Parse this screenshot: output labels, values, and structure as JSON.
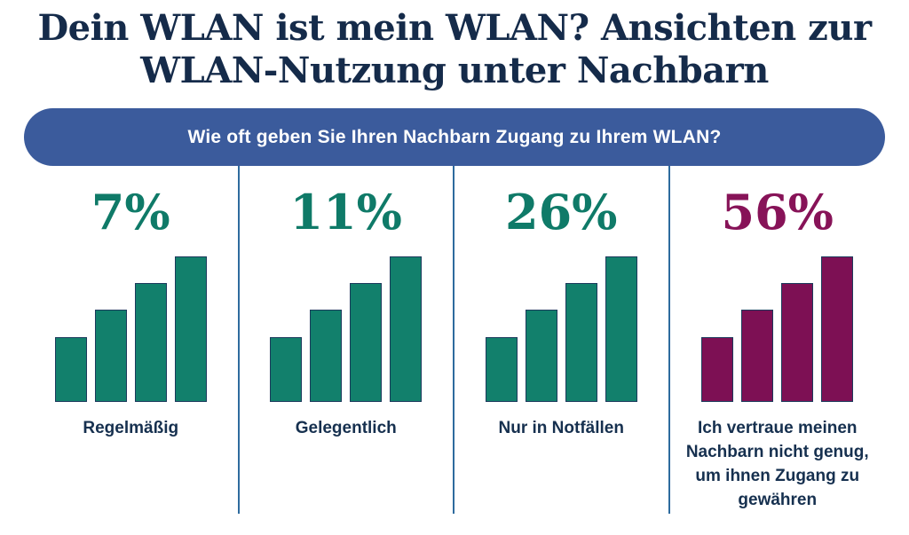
{
  "title": {
    "line1": "Dein WLAN ist mein WLAN? Ansichten zur",
    "line2": "WLAN-Nutzung unter Nachbarn"
  },
  "question_banner": {
    "text": "Wie oft geben Sie Ihren Nachbarn Zugang zu Ihrem WLAN?"
  },
  "columns": [
    {
      "percent": "7%",
      "label": "Regelmäßig",
      "color": "teal",
      "icon": "ascending-bar-chart-icon"
    },
    {
      "percent": "11%",
      "label": "Gelegentlich",
      "color": "teal",
      "icon": "ascending-bar-chart-icon"
    },
    {
      "percent": "26%",
      "label": "Nur in Notfällen",
      "color": "teal",
      "icon": "ascending-bar-chart-icon"
    },
    {
      "percent": "56%",
      "label": "Ich vertraue meinen Nachbarn nicht genug, um ihnen Zugang zu gewähren",
      "color": "magenta",
      "icon": "ascending-bar-chart-icon"
    }
  ],
  "theme": {
    "title_color": "#152B4A",
    "banner_blue": "#3B5B9C",
    "banner_text": "#FFFFFF",
    "teal": "#12806C",
    "teal_text": "#0F7A68",
    "magenta": "#7D1054",
    "magenta_text": "#871358",
    "label_navy": "#16304F",
    "divider_blue": "#2E6B9E",
    "bar_outline": "#1C3A5C"
  },
  "chart_data": {
    "type": "bar",
    "title": "Dein WLAN ist mein WLAN? Ansichten zur WLAN-Nutzung unter Nachbarn",
    "question": "Wie oft geben Sie Ihren Nachbarn Zugang zu Ihrem WLAN?",
    "categories": [
      "Regelmäßig",
      "Gelegentlich",
      "Nur in Notfällen",
      "Ich vertraue meinen Nachbarn nicht genug, um ihnen Zugang zu gewähren"
    ],
    "values": [
      7,
      11,
      26,
      56
    ],
    "unit": "%",
    "series_colors": [
      "#12806C",
      "#12806C",
      "#12806C",
      "#7D1054"
    ],
    "legend": "none",
    "grid": false,
    "notes": "Each category displays a decorative ascending 4-bar icon; icon bar heights are identical across categories and not proportional to the percentage values."
  }
}
